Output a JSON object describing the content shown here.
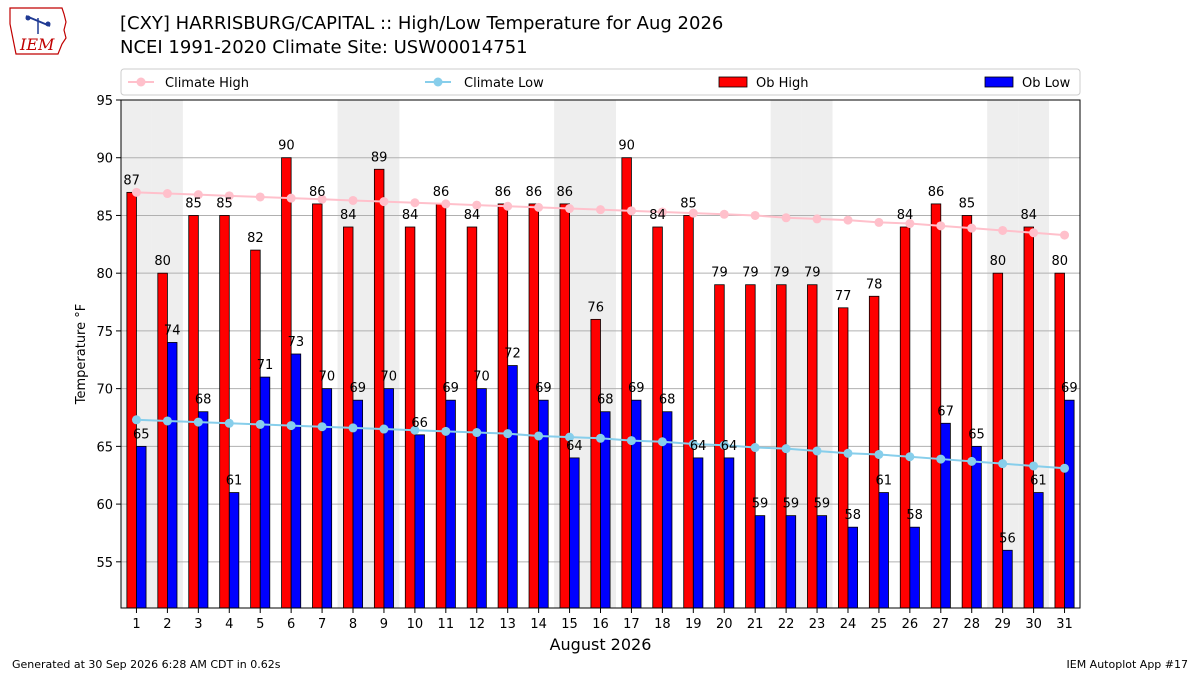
{
  "header": {
    "title_line1": "[CXY] HARRISBURG/CAPITAL :: High/Low Temperature for Aug 2026",
    "title_line2": "NCEI 1991-2020 Climate Site: USW00014751"
  },
  "logo": {
    "text": "IEM"
  },
  "footer": {
    "generated": "Generated at 30 Sep 2026 6:28 AM CDT in 0.62s",
    "app": "IEM Autoplot App #17"
  },
  "colors": {
    "climate_high": "#ffc0cb",
    "climate_low": "#87ceeb",
    "ob_high": "#ff0000",
    "ob_low": "#0000ff",
    "weekend_band": "#eeeeee",
    "grid": "#b0b0b0"
  },
  "chart_data": {
    "type": "bar",
    "xlabel": "August 2026",
    "ylabel": "Temperature °F",
    "ylim": [
      51,
      95
    ],
    "yticks": [
      55,
      60,
      65,
      70,
      75,
      80,
      85,
      90,
      95
    ],
    "grid": "horizontal",
    "legend_position": "top",
    "categories": [
      "1",
      "2",
      "3",
      "4",
      "5",
      "6",
      "7",
      "8",
      "9",
      "10",
      "11",
      "12",
      "13",
      "14",
      "15",
      "16",
      "17",
      "18",
      "19",
      "20",
      "21",
      "22",
      "23",
      "24",
      "25",
      "26",
      "27",
      "28",
      "29",
      "30",
      "31"
    ],
    "shaded_days": [
      1,
      2,
      8,
      9,
      15,
      16,
      22,
      23,
      29,
      30
    ],
    "series": [
      {
        "name": "Ob High",
        "kind": "bar",
        "values": [
          87,
          80,
          85,
          85,
          82,
          90,
          86,
          84,
          89,
          84,
          86,
          84,
          86,
          86,
          86,
          76,
          90,
          84,
          85,
          79,
          79,
          79,
          79,
          77,
          78,
          84,
          86,
          85,
          80,
          84,
          80
        ]
      },
      {
        "name": "Ob Low",
        "kind": "bar",
        "values": [
          65,
          74,
          68,
          61,
          71,
          73,
          70,
          69,
          70,
          66,
          69,
          70,
          72,
          69,
          64,
          68,
          69,
          68,
          64,
          64,
          59,
          59,
          59,
          58,
          61,
          58,
          67,
          65,
          56,
          61,
          69
        ]
      },
      {
        "name": "Climate High",
        "kind": "line",
        "values": [
          87.0,
          86.9,
          86.8,
          86.7,
          86.6,
          86.5,
          86.4,
          86.3,
          86.2,
          86.1,
          86.0,
          85.9,
          85.8,
          85.7,
          85.6,
          85.5,
          85.4,
          85.3,
          85.2,
          85.1,
          85.0,
          84.8,
          84.7,
          84.6,
          84.4,
          84.3,
          84.1,
          83.9,
          83.7,
          83.5,
          83.3
        ]
      },
      {
        "name": "Climate Low",
        "kind": "line",
        "values": [
          67.3,
          67.2,
          67.1,
          67.0,
          66.9,
          66.8,
          66.7,
          66.6,
          66.5,
          66.4,
          66.3,
          66.2,
          66.1,
          65.9,
          65.8,
          65.7,
          65.5,
          65.4,
          65.2,
          65.1,
          64.9,
          64.8,
          64.6,
          64.4,
          64.3,
          64.1,
          63.9,
          63.7,
          63.5,
          63.3,
          63.1
        ]
      }
    ]
  }
}
